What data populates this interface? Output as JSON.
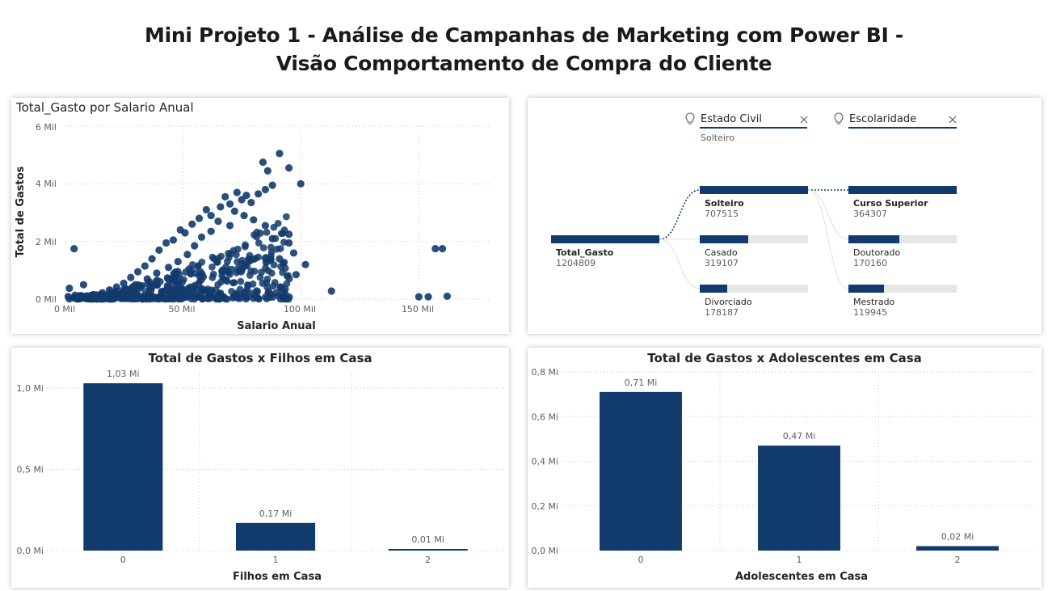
{
  "page": {
    "title_line1": "Mini Projeto 1 - Análise de Campanhas de Marketing com Power BI -",
    "title_line2": "Visão Comportamento de Compra do Cliente"
  },
  "colors": {
    "primary": "#123b6d",
    "track": "#e6e6e6",
    "connector": "#123b6d"
  },
  "scatter": {
    "title": "Total_Gasto por Salario Anual",
    "xlabel": "Salario Anual",
    "ylabel": "Total de Gastos",
    "xticks": [
      "0 Mil",
      "50 Mil",
      "100 Mil",
      "150 Mil"
    ],
    "yticks": [
      "0 Mil",
      "2 Mil",
      "4 Mil",
      "6 Mil"
    ]
  },
  "tree": {
    "headers": [
      {
        "label": "Estado Civil",
        "icon": "lightbulb-icon",
        "close_icon": "close-icon",
        "selected": "Solteiro"
      },
      {
        "label": "Escolaridade",
        "icon": "lightbulb-icon",
        "close_icon": "close-icon",
        "selected": ""
      }
    ],
    "root": {
      "label": "Total_Gasto",
      "value": "1204809"
    },
    "level1": [
      {
        "label": "Solteiro",
        "value": "707515",
        "bold": true
      },
      {
        "label": "Casado",
        "value": "319107",
        "bold": false
      },
      {
        "label": "Divorciado",
        "value": "178187",
        "bold": false
      }
    ],
    "level2": [
      {
        "label": "Curso Superior",
        "value": "364307",
        "bold": true
      },
      {
        "label": "Doutorado",
        "value": "170160",
        "bold": false
      },
      {
        "label": "Mestrado",
        "value": "119945",
        "bold": false
      }
    ]
  },
  "chart_data": [
    {
      "type": "scatter",
      "title": "Total_Gasto por Salario Anual",
      "xlabel": "Salario Anual",
      "ylabel": "Total de Gastos",
      "xlim": [
        0,
        180000
      ],
      "ylim": [
        0,
        6000
      ],
      "grid": true,
      "points": [
        [
          4000,
          1750
        ],
        [
          91000,
          5050
        ],
        [
          84000,
          4750
        ],
        [
          95000,
          4550
        ],
        [
          86000,
          4450
        ],
        [
          100000,
          4000
        ],
        [
          88000,
          3950
        ],
        [
          85000,
          3800
        ],
        [
          73000,
          3700
        ],
        [
          77000,
          3600
        ],
        [
          82000,
          3650
        ],
        [
          68000,
          3550
        ],
        [
          75000,
          3450
        ],
        [
          79000,
          3350
        ],
        [
          70000,
          3300
        ],
        [
          66000,
          3200
        ],
        [
          72000,
          3050
        ],
        [
          62000,
          2900
        ],
        [
          60000,
          3100
        ],
        [
          57000,
          2800
        ],
        [
          54000,
          2600
        ],
        [
          49000,
          2400
        ],
        [
          51000,
          2300
        ],
        [
          46000,
          2050
        ],
        [
          43000,
          1950
        ],
        [
          40000,
          1700
        ],
        [
          37000,
          1400
        ],
        [
          34000,
          1150
        ],
        [
          31000,
          950
        ],
        [
          28000,
          750
        ],
        [
          25000,
          550
        ],
        [
          22000,
          420
        ],
        [
          19000,
          320
        ],
        [
          16000,
          220
        ],
        [
          12000,
          150
        ],
        [
          9000,
          80
        ],
        [
          6000,
          40
        ],
        [
          2000,
          10
        ],
        [
          95000,
          1950
        ],
        [
          97000,
          1600
        ],
        [
          102000,
          1200
        ],
        [
          98000,
          850
        ],
        [
          113000,
          280
        ],
        [
          91000,
          1400
        ],
        [
          88000,
          2100
        ],
        [
          95000,
          2250
        ],
        [
          85000,
          2550
        ],
        [
          80000,
          2750
        ],
        [
          76000,
          2900
        ],
        [
          65000,
          2700
        ],
        [
          70000,
          2550
        ],
        [
          62000,
          2350
        ],
        [
          58000,
          2150
        ],
        [
          55000,
          1850
        ],
        [
          52000,
          1550
        ],
        [
          48000,
          1300
        ],
        [
          44000,
          1100
        ],
        [
          39000,
          900
        ],
        [
          35000,
          700
        ],
        [
          30000,
          500
        ],
        [
          26000,
          350
        ],
        [
          157000,
          1750
        ],
        [
          160000,
          1750
        ],
        [
          150000,
          80
        ],
        [
          154000,
          80
        ],
        [
          162000,
          100
        ],
        [
          2000,
          380
        ],
        [
          8000,
          500
        ],
        [
          1500,
          90
        ]
      ]
    },
    {
      "type": "bar",
      "title": "Total de Gastos x Filhos em Casa",
      "xlabel": "Filhos em Casa",
      "ylabel": "",
      "categories": [
        "0",
        "1",
        "2"
      ],
      "values": [
        1.03,
        0.17,
        0.01
      ],
      "value_labels": [
        "1,03 Mi",
        "0,17 Mi",
        "0,01 Mi"
      ],
      "yticks": [
        "0,0 Mi",
        "0,5 Mi",
        "1,0 Mi"
      ],
      "ytick_values": [
        0,
        0.5,
        1.0
      ],
      "ylim": [
        0,
        1.1
      ],
      "unit": "Mi",
      "grid": true
    },
    {
      "type": "bar",
      "title": "Total de Gastos x Adolescentes em Casa",
      "xlabel": "Adolescentes em Casa",
      "ylabel": "",
      "categories": [
        "0",
        "1",
        "2"
      ],
      "values": [
        0.71,
        0.47,
        0.02
      ],
      "value_labels": [
        "0,71 Mi",
        "0,47 Mi",
        "0,02 Mi"
      ],
      "yticks": [
        "0,0 Mi",
        "0,2 Mi",
        "0,4 Mi",
        "0,6 Mi",
        "0,8 Mi"
      ],
      "ytick_values": [
        0,
        0.2,
        0.4,
        0.6,
        0.8
      ],
      "ylim": [
        0,
        0.8
      ],
      "unit": "Mi",
      "grid": true
    }
  ]
}
